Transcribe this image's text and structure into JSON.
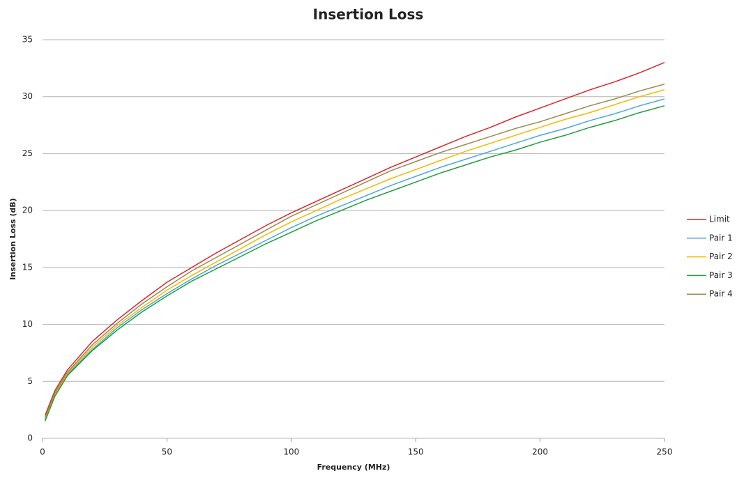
{
  "chart_data": {
    "type": "line",
    "title": "Insertion Loss",
    "x_label": "Frequency (MHz)",
    "y_label": "Insertion Loss (dB)",
    "x": [
      1,
      5,
      10,
      20,
      30,
      40,
      50,
      60,
      70,
      80,
      90,
      100,
      110,
      120,
      130,
      140,
      150,
      160,
      170,
      180,
      190,
      200,
      210,
      220,
      230,
      240,
      250
    ],
    "series": [
      {
        "name": "Limit",
        "color": "#d9262b",
        "values": [
          2.0,
          4.2,
          6.0,
          8.5,
          10.4,
          12.1,
          13.7,
          15.0,
          16.3,
          17.5,
          18.7,
          19.8,
          20.8,
          21.8,
          22.8,
          23.8,
          24.7,
          25.6,
          26.5,
          27.3,
          28.2,
          29.0,
          29.8,
          30.6,
          31.3,
          32.1,
          33.0
        ]
      },
      {
        "name": "Pair 1",
        "color": "#4aa8d8",
        "values": [
          1.6,
          3.8,
          5.6,
          7.8,
          9.7,
          11.3,
          12.7,
          14.0,
          15.2,
          16.3,
          17.4,
          18.5,
          19.5,
          20.4,
          21.3,
          22.2,
          23.0,
          23.8,
          24.5,
          25.2,
          25.9,
          26.6,
          27.2,
          27.9,
          28.5,
          29.2,
          29.8
        ]
      },
      {
        "name": "Pair 2",
        "color": "#f5b800",
        "values": [
          1.7,
          3.9,
          5.7,
          8.0,
          9.9,
          11.5,
          13.0,
          14.3,
          15.5,
          16.7,
          17.9,
          19.0,
          20.0,
          21.0,
          21.9,
          22.8,
          23.6,
          24.4,
          25.2,
          25.9,
          26.6,
          27.3,
          28.0,
          28.6,
          29.3,
          30.0,
          30.6
        ]
      },
      {
        "name": "Pair 3",
        "color": "#1f9e3d",
        "values": [
          1.5,
          3.7,
          5.5,
          7.7,
          9.5,
          11.1,
          12.5,
          13.8,
          14.9,
          16.0,
          17.1,
          18.1,
          19.1,
          20.0,
          20.9,
          21.7,
          22.5,
          23.3,
          24.0,
          24.7,
          25.3,
          26.0,
          26.6,
          27.3,
          27.9,
          28.6,
          29.2
        ]
      },
      {
        "name": "Pair 4",
        "color": "#9b8a4e",
        "values": [
          1.8,
          4.0,
          5.8,
          8.2,
          10.1,
          11.8,
          13.3,
          14.7,
          15.9,
          17.1,
          18.3,
          19.5,
          20.5,
          21.5,
          22.5,
          23.5,
          24.3,
          25.1,
          25.8,
          26.5,
          27.2,
          27.8,
          28.5,
          29.2,
          29.8,
          30.5,
          31.1
        ]
      }
    ],
    "xlim": [
      0,
      250
    ],
    "xticks": [
      0,
      50,
      100,
      150,
      200,
      250
    ],
    "ylim": [
      0,
      35
    ],
    "yticks": [
      0,
      5,
      10,
      15,
      20,
      25,
      30,
      35
    ],
    "grid": true,
    "legend": "right"
  }
}
